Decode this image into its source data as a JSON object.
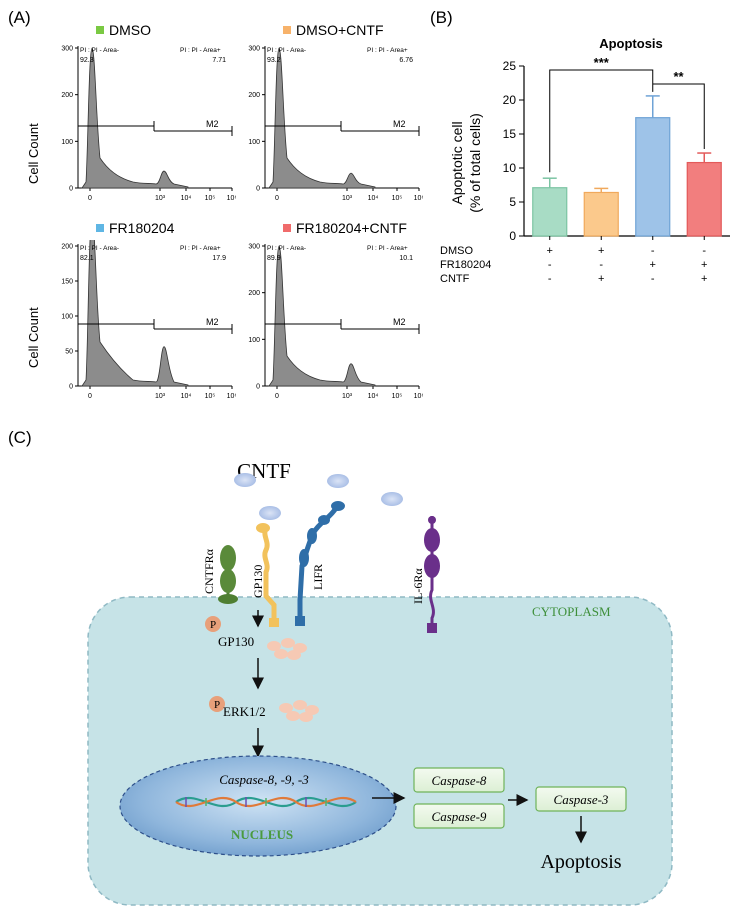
{
  "panel_a": {
    "label": "(A)",
    "y_axis_label": "Cell Count",
    "region_labels": {
      "left": "PI : PI - Area-",
      "right": "PI : PI - Area+",
      "gate": "M2"
    },
    "x_ticks": [
      "0",
      "10³",
      "10⁴",
      "10⁵",
      "10⁶"
    ],
    "histograms": [
      {
        "title": "DMSO",
        "swatch_color": "#7ac943",
        "pct_left": "92.3",
        "pct_right": "7.71",
        "y_ticks": [
          "300",
          "200",
          "100",
          "0"
        ],
        "peak_count": 300
      },
      {
        "title": "DMSO+CNTF",
        "swatch_color": "#f7b26a",
        "pct_left": "93.2",
        "pct_right": "6.76",
        "y_ticks": [
          "300",
          "200",
          "100",
          "0"
        ],
        "peak_count": 300
      },
      {
        "title": "FR180204",
        "swatch_color": "#5fb6e4",
        "pct_left": "82.1",
        "pct_right": "17.9",
        "y_ticks": [
          "200",
          "150",
          "100",
          "50",
          "0"
        ],
        "peak_count": 240
      },
      {
        "title": "FR180204+CNTF",
        "swatch_color": "#f06b6b",
        "pct_left": "89.9",
        "pct_right": "10.1",
        "y_ticks": [
          "300",
          "200",
          "100",
          "0"
        ],
        "peak_count": 300
      }
    ]
  },
  "panel_b": {
    "label": "(B)",
    "chart_data": {
      "type": "bar",
      "title": "Apoptosis",
      "ylabel_line1": "Apoptotic cell",
      "ylabel_line2": "(% of total cells)",
      "ylim": [
        0,
        25
      ],
      "yticks": [
        0,
        5,
        10,
        15,
        20,
        25
      ],
      "grid": false,
      "values": [
        7.1,
        6.4,
        17.4,
        10.8
      ],
      "errors": [
        1.4,
        0.6,
        3.2,
        1.4
      ],
      "colors": [
        "#a8dcc5",
        "#fbc98c",
        "#9ec3e8",
        "#f27e7e"
      ],
      "edge_colors": [
        "#7cc4a3",
        "#f0a95c",
        "#6fa3d6",
        "#e35a5a"
      ],
      "treatment_rows": [
        {
          "name": "DMSO",
          "marks": [
            "+",
            "+",
            "-",
            "-"
          ]
        },
        {
          "name": "FR180204",
          "marks": [
            "-",
            "-",
            "+",
            "+"
          ]
        },
        {
          "name": "CNTF",
          "marks": [
            "-",
            "+",
            "-",
            "+"
          ]
        }
      ],
      "significance": [
        {
          "from": 0,
          "to": 2,
          "label": "***"
        },
        {
          "from": 2,
          "to": 3,
          "label": "**"
        }
      ]
    }
  },
  "panel_c": {
    "label": "(C)",
    "ligand": "CNTF",
    "receptors": [
      "CNTFRα",
      "GP130",
      "LIFR",
      "IL-6Rα"
    ],
    "cytoplasm_label": "CYTOPLASM",
    "phospho_label": "P",
    "nodes": [
      "GP130",
      "ERK1/2"
    ],
    "nucleus_genes": "Caspase-8, -9, -3",
    "nucleus_label": "NUCLEUS",
    "caspase_boxes": [
      "Caspase-8",
      "Caspase-9",
      "Caspase-3"
    ],
    "outcome": "Apoptosis"
  }
}
